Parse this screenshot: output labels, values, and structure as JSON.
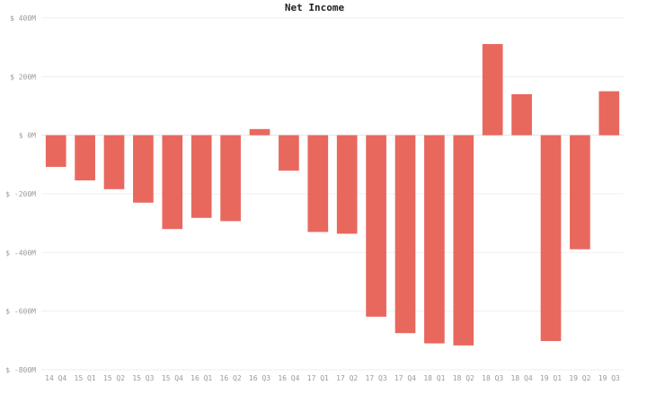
{
  "chart_data": {
    "type": "bar",
    "title": "Net Income",
    "xlabel": "",
    "ylabel": "",
    "categories": [
      "14 Q4",
      "15 Q1",
      "15 Q2",
      "15 Q3",
      "15 Q4",
      "16 Q1",
      "16 Q2",
      "16 Q3",
      "16 Q4",
      "17 Q1",
      "17 Q2",
      "17 Q3",
      "17 Q4",
      "18 Q1",
      "18 Q2",
      "18 Q3",
      "18 Q4",
      "19 Q1",
      "19 Q2",
      "19 Q3"
    ],
    "values": [
      -108,
      -154,
      -184,
      -230,
      -320,
      -282,
      -293,
      21,
      -121,
      -330,
      -336,
      -619,
      -675,
      -710,
      -717,
      311,
      140,
      -702,
      -389,
      150
    ],
    "ylim": [
      -800,
      400
    ],
    "yticks": [
      -800,
      -600,
      -400,
      -200,
      0,
      200,
      400
    ],
    "ytick_labels": [
      "$ -800M",
      "$ -600M",
      "$ -400M",
      "$ -200M",
      "$ 0M",
      "$ 200M",
      "$ 400M"
    ],
    "bar_color": "#e8685e",
    "grid": true,
    "legend": "none"
  }
}
